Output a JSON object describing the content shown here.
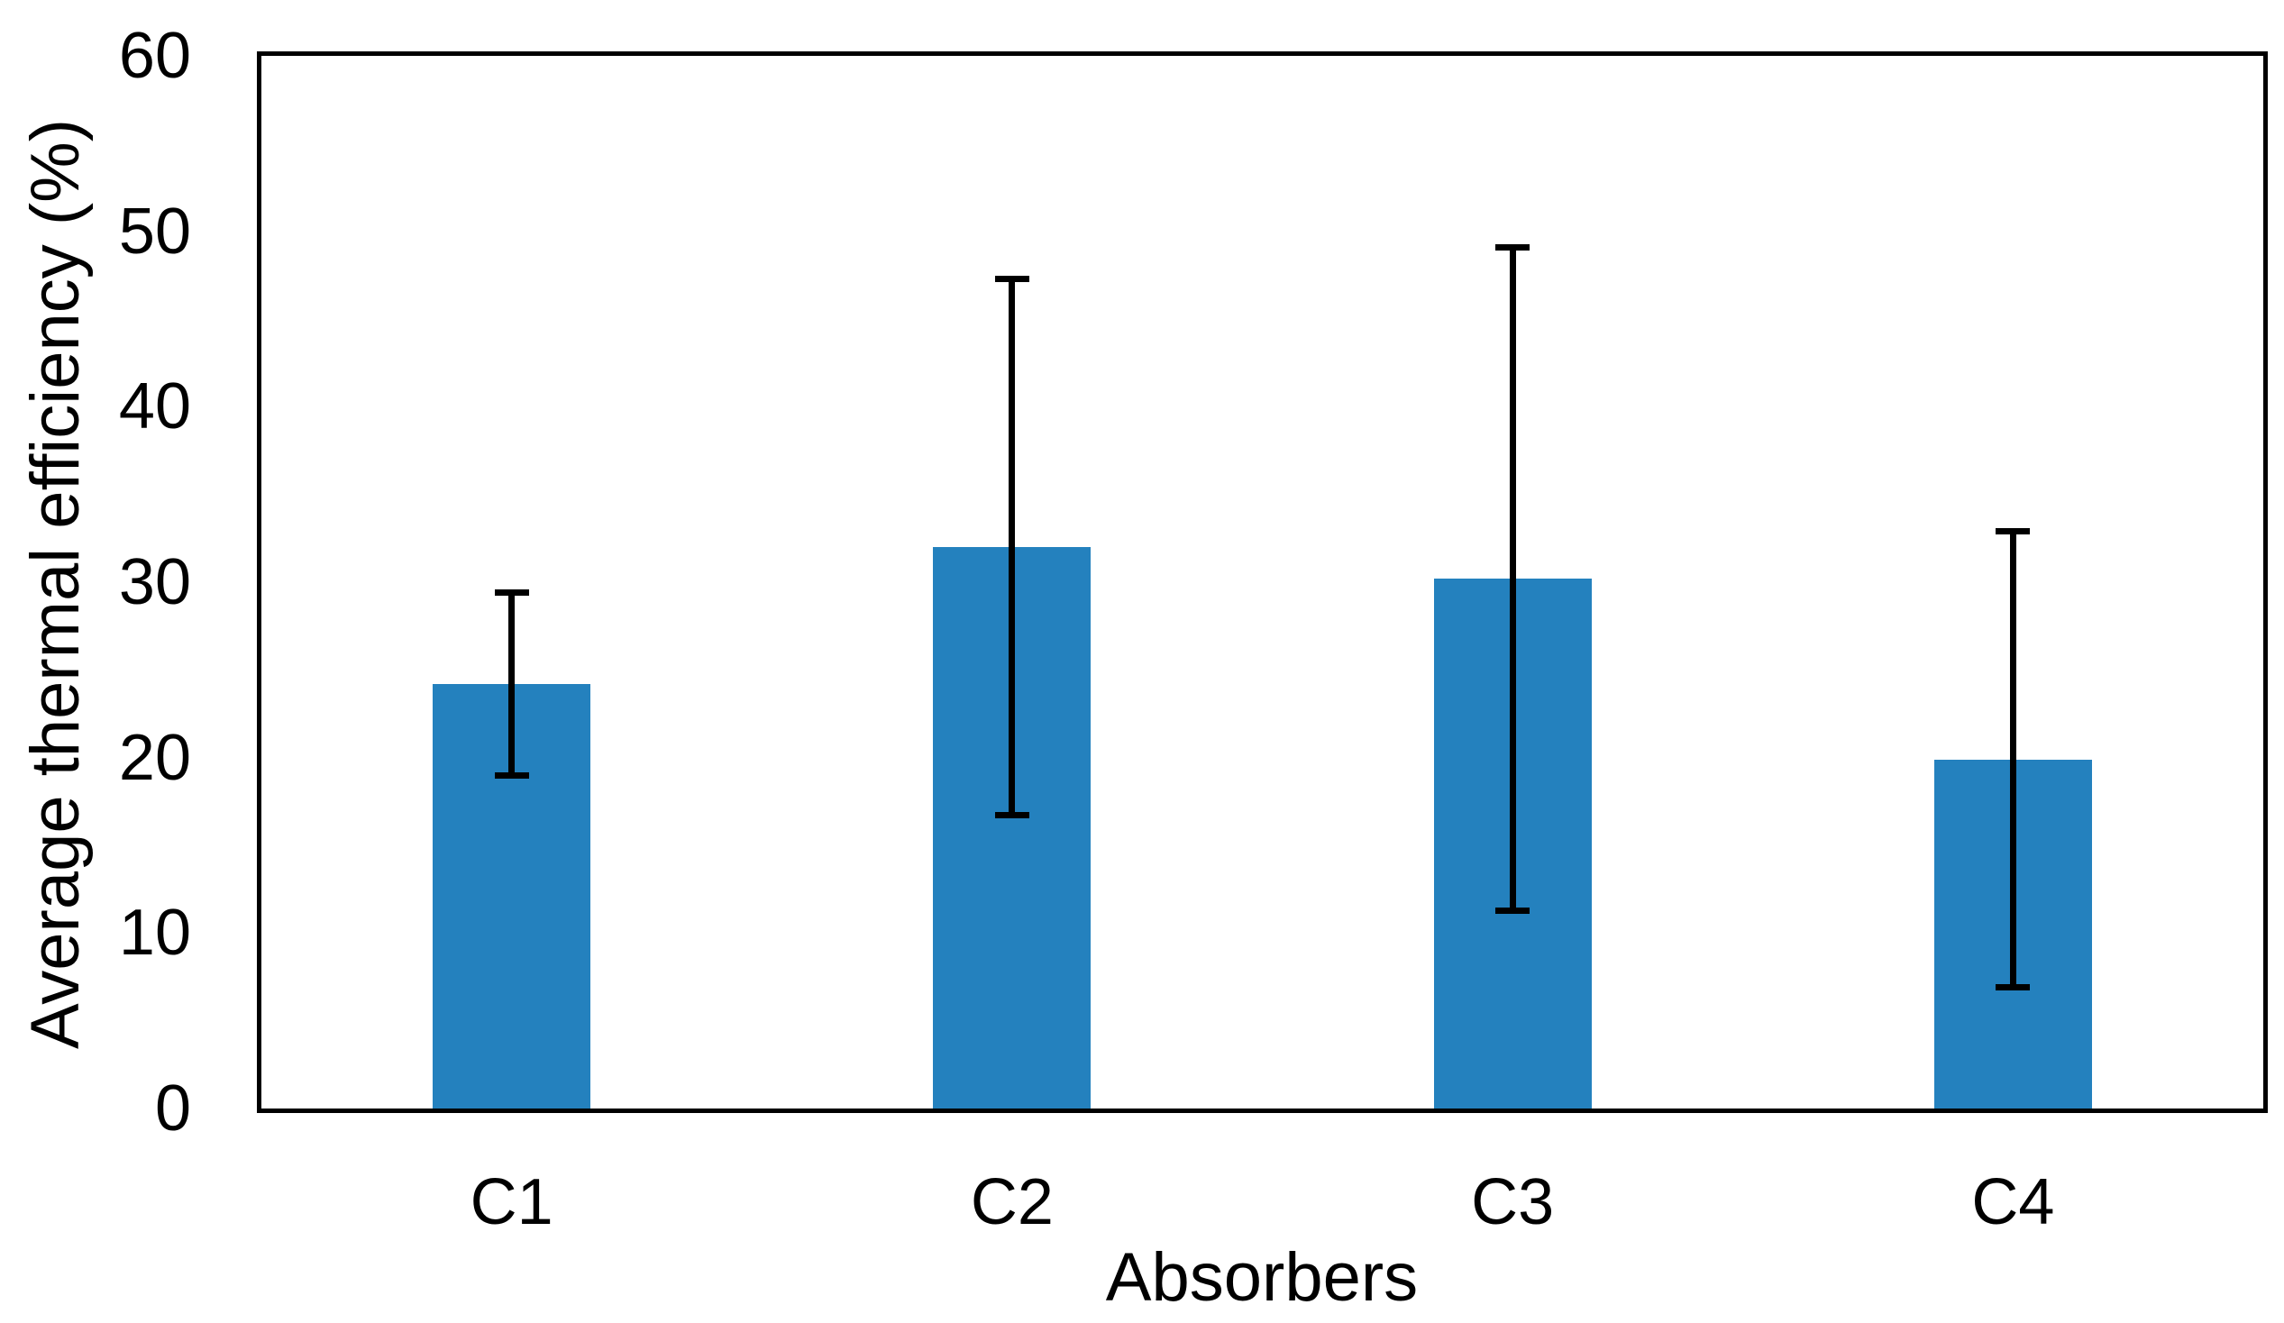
{
  "chart_data": {
    "type": "bar",
    "categories": [
      "C1",
      "C2",
      "C3",
      "C4"
    ],
    "values": [
      24.2,
      32.0,
      30.2,
      19.9
    ],
    "error_bars": [
      5.2,
      15.3,
      18.9,
      13.0
    ],
    "title": "",
    "xlabel": "Absorbers",
    "ylabel": "Average thermal efficiency (%)",
    "ylim": [
      0,
      60
    ],
    "yticks": [
      0,
      10,
      20,
      30,
      40,
      50,
      60
    ],
    "grid": false,
    "legend": false,
    "bar_color": "#2481BE",
    "error_color": "#000000",
    "axis_color": "#000000",
    "background_color": "#FFFFFF"
  }
}
